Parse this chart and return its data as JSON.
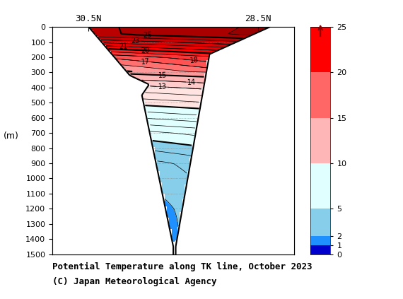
{
  "title_line1": "Potential Temperature along TK line, October 2023",
  "title_line2": "(C) Japan Meteorological Agency",
  "xlabel_left": "30.5N",
  "xlabel_right": "28.5N",
  "ylabel": "(m)",
  "ylim": [
    0,
    1500
  ],
  "xlim": [
    0,
    10
  ],
  "yticks": [
    0,
    100,
    200,
    300,
    400,
    500,
    600,
    700,
    800,
    900,
    1000,
    1100,
    1200,
    1300,
    1400,
    1500
  ],
  "colorbar_levels": [
    0,
    1,
    2,
    5,
    10,
    15,
    20,
    25
  ],
  "colorbar_labels": [
    "0",
    "1",
    "2",
    "5",
    "10",
    "15",
    "20",
    "25"
  ],
  "colorbar_colors": [
    "#0000cd",
    "#1e90ff",
    "#87ceeb",
    "#e0ffff",
    "#ffb6c1",
    "#ff6666",
    "#ff0000",
    "#8b0000"
  ],
  "background_color": "#ffffff",
  "figsize": [
    5.7,
    4.23
  ],
  "dpi": 100
}
